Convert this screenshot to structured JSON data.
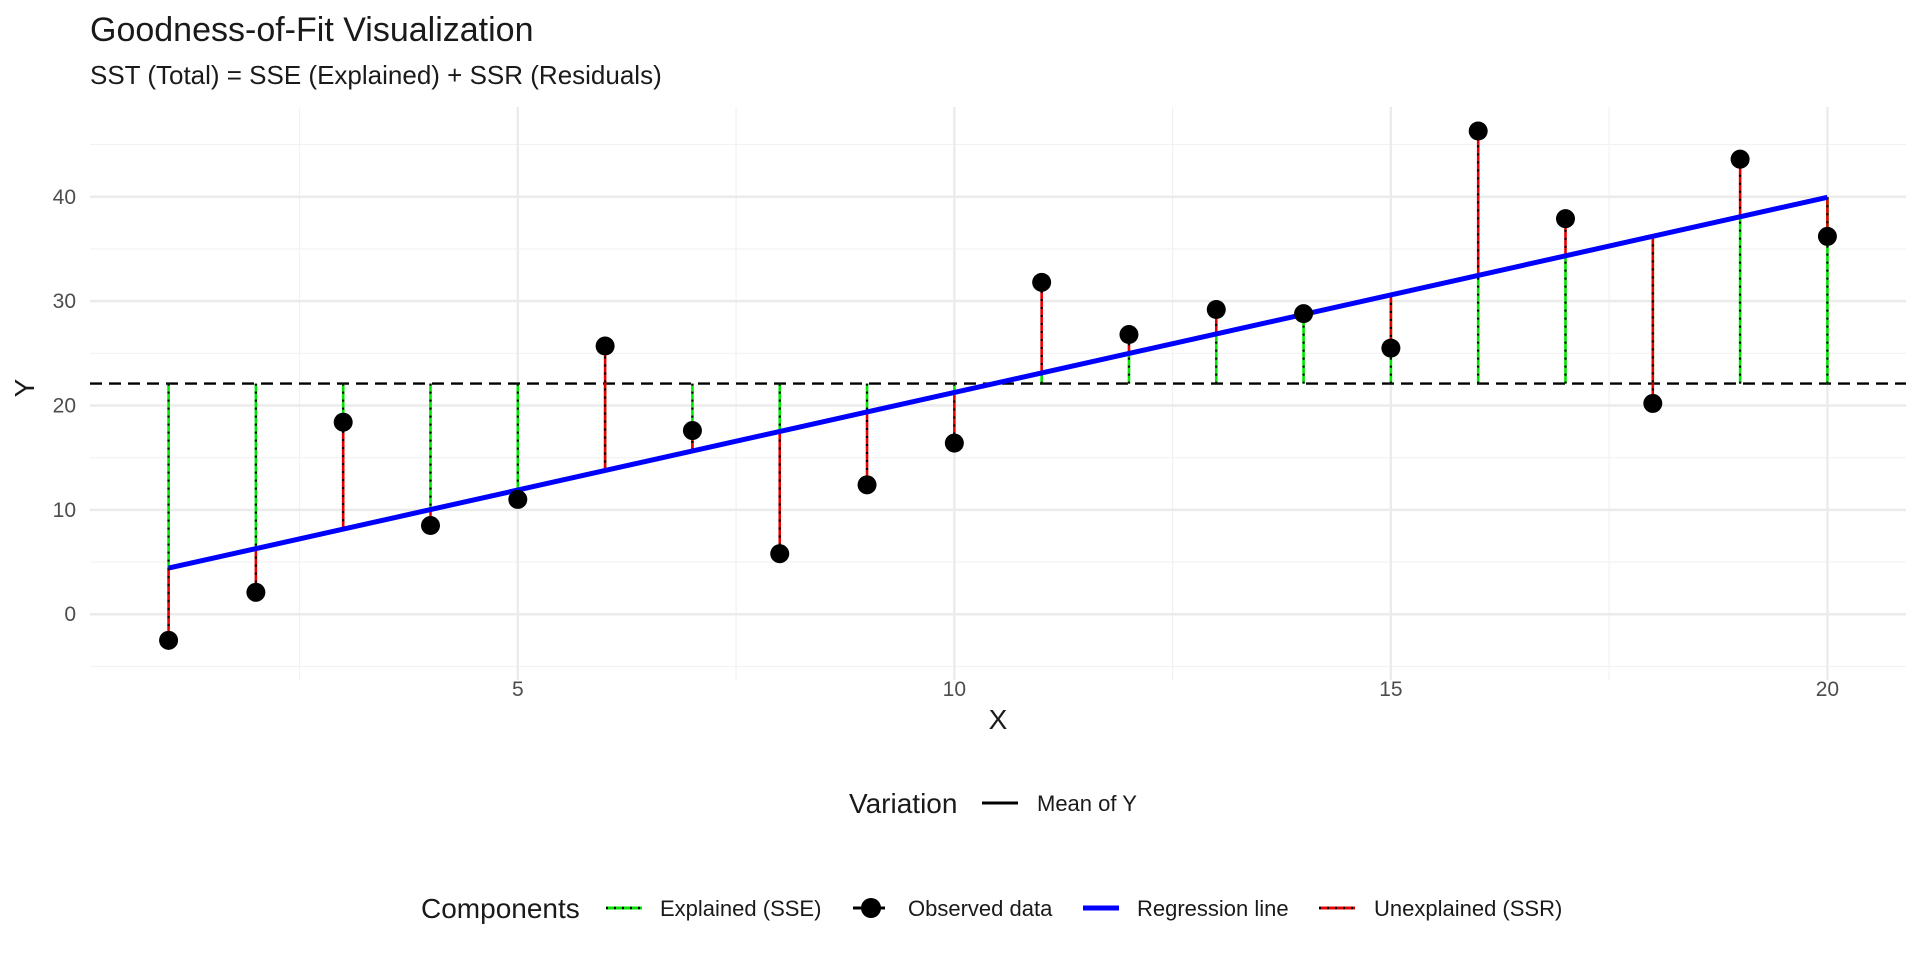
{
  "chart_data": {
    "type": "scatter",
    "title": "Goodness-of-Fit Visualization",
    "subtitle": "SST (Total) = SSE (Explained) + SSR (Residuals)",
    "xlabel": "X",
    "ylabel": "Y",
    "xlim": [
      0.1,
      20.9
    ],
    "ylim": [
      -6.3,
      48.6
    ],
    "x_ticks": [
      5,
      10,
      15,
      20
    ],
    "y_ticks": [
      0,
      10,
      20,
      30,
      40
    ],
    "grid": true,
    "mean_y": 22.1,
    "regression": {
      "intercept": 2.55,
      "slope": 1.87
    },
    "x": [
      1,
      2,
      3,
      4,
      5,
      6,
      7,
      8,
      9,
      10,
      11,
      12,
      13,
      14,
      15,
      16,
      17,
      18,
      19,
      20
    ],
    "y": [
      -2.5,
      2.1,
      18.4,
      8.5,
      11.0,
      25.7,
      17.6,
      5.8,
      12.4,
      16.4,
      31.8,
      26.8,
      29.2,
      28.8,
      25.5,
      46.3,
      37.9,
      20.2,
      43.6,
      36.2
    ],
    "colors": {
      "observed": "#000000",
      "regression": "#0000ff",
      "explained": "#00e600",
      "unexplained": "#e60000",
      "mean": "#000000"
    },
    "legend": {
      "variation": {
        "title": "Variation",
        "items": [
          {
            "label": "Mean of Y"
          }
        ]
      },
      "components": {
        "title": "Components",
        "items": [
          {
            "label": "Explained (SSE)"
          },
          {
            "label": "Observed data"
          },
          {
            "label": "Regression line"
          },
          {
            "label": "Unexplained (SSR)"
          }
        ]
      }
    }
  }
}
